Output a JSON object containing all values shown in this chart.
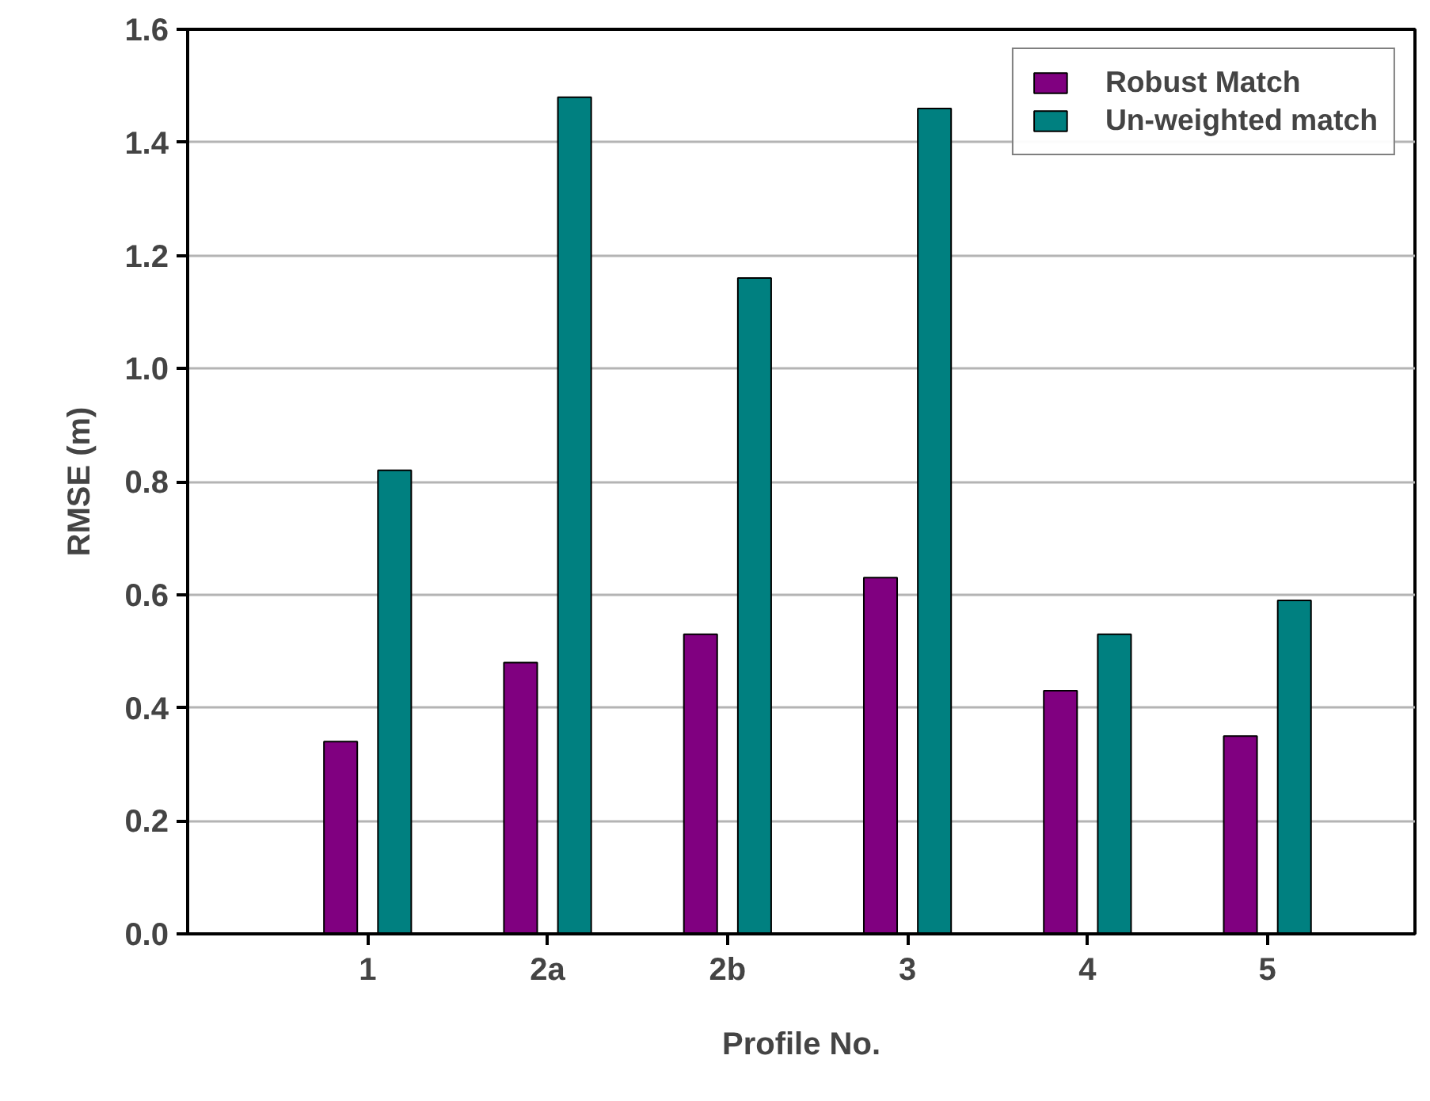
{
  "chart_data": {
    "type": "bar",
    "xlabel": "Profile No.",
    "ylabel": "RMSE (m)",
    "categories": [
      "1",
      "2a",
      "2b",
      "3",
      "4",
      "5"
    ],
    "series": [
      {
        "name": "Robust Match",
        "color": "#800080",
        "values": [
          0.34,
          0.48,
          0.53,
          0.63,
          0.43,
          0.35
        ]
      },
      {
        "name": "Un-weighted match",
        "color": "#008080",
        "values": [
          0.82,
          1.48,
          1.16,
          1.46,
          0.53,
          0.59
        ]
      }
    ],
    "ylim": [
      0,
      1.6
    ],
    "yticks": [
      {
        "value": 0,
        "label": "0.0"
      },
      {
        "value": 0.2,
        "label": "0.2"
      },
      {
        "value": 0.4,
        "label": "0.4"
      },
      {
        "value": 0.6,
        "label": "0.6"
      },
      {
        "value": 0.8,
        "label": "0.8"
      },
      {
        "value": 1.0,
        "label": "1.0"
      },
      {
        "value": 1.2,
        "label": "1.2"
      },
      {
        "value": 1.4,
        "label": "1.4"
      },
      {
        "value": 1.6,
        "label": "1.6"
      }
    ],
    "grid": "y",
    "legend": "top right"
  }
}
